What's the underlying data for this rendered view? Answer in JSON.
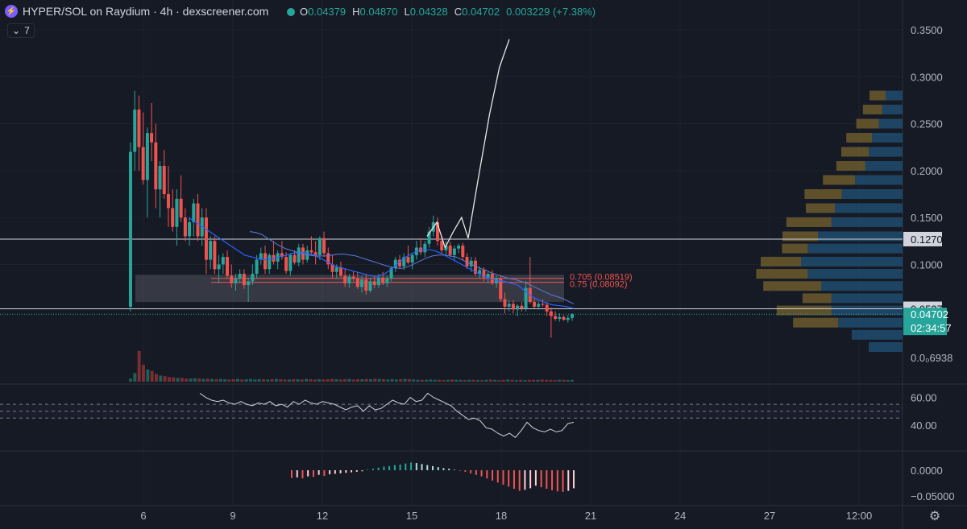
{
  "header": {
    "title": "HYPER/SOL on Raydium · 4h · dexscreener.com",
    "indicator_button": "7",
    "ohlc": [
      {
        "k": "O",
        "v": "0.04379"
      },
      {
        "k": "H",
        "v": "0.04870"
      },
      {
        "k": "L",
        "v": "0.04328"
      },
      {
        "k": "C",
        "v": "0.04702"
      },
      {
        "k": "",
        "v": "0.003229 (+7.38%)"
      }
    ]
  },
  "colors": {
    "background": "#161a25",
    "up": "#26a69a",
    "down": "#ef5350",
    "ma": "#2962ff",
    "text": "#b2b5be",
    "hline": "#d1d4dc",
    "rsi": "#d1d4dc",
    "fib": "#ef5350",
    "vp_up": "#1e4d6e",
    "vp_down": "#6b5a2d"
  },
  "chart_data": [
    {
      "type": "candlestick",
      "title": "HYPER/SOL on Raydium · 4h",
      "x_tick_labels": [
        "6",
        "9",
        "12",
        "15",
        "18",
        "21",
        "24",
        "27",
        "12:00"
      ],
      "y_tick_labels": [
        "0.3500",
        "0.3000",
        "0.2500",
        "0.2000",
        "0.1500",
        "0.1000",
        "0.0₀6938"
      ],
      "y_ticks": [
        0.35,
        0.3,
        0.25,
        0.2,
        0.15,
        0.1
      ],
      "price_labels": [
        {
          "text": "0.1270",
          "value": 0.127,
          "style": "white"
        },
        {
          "text": "0.05273",
          "value": 0.05273,
          "style": "white"
        },
        {
          "text": "0.04702",
          "value": 0.04702,
          "style": "current"
        },
        {
          "text": "02:34:57",
          "value": 0.04702,
          "style": "countdown"
        }
      ],
      "fib_labels": [
        {
          "text": "0.705 (0.08519)",
          "value": 0.08519
        },
        {
          "text": "0.75 (0.08092)",
          "value": 0.08092
        }
      ],
      "zone": [
        0.06,
        0.089
      ],
      "candles": [
        [
          0.055,
          0.23,
          0.05,
          0.22
        ],
        [
          0.22,
          0.285,
          0.2,
          0.265
        ],
        [
          0.265,
          0.28,
          0.2,
          0.225
        ],
        [
          0.225,
          0.262,
          0.185,
          0.19
        ],
        [
          0.19,
          0.246,
          0.15,
          0.24
        ],
        [
          0.24,
          0.272,
          0.21,
          0.23
        ],
        [
          0.23,
          0.25,
          0.16,
          0.18
        ],
        [
          0.18,
          0.21,
          0.15,
          0.205
        ],
        [
          0.205,
          0.222,
          0.17,
          0.175
        ],
        [
          0.175,
          0.205,
          0.14,
          0.16
        ],
        [
          0.16,
          0.18,
          0.135,
          0.14
        ],
        [
          0.14,
          0.18,
          0.12,
          0.17
        ],
        [
          0.17,
          0.195,
          0.145,
          0.15
        ],
        [
          0.15,
          0.16,
          0.125,
          0.13
        ],
        [
          0.13,
          0.15,
          0.12,
          0.145
        ],
        [
          0.145,
          0.17,
          0.13,
          0.165
        ],
        [
          0.165,
          0.175,
          0.125,
          0.13
        ],
        [
          0.13,
          0.16,
          0.12,
          0.15
        ],
        [
          0.15,
          0.16,
          0.09,
          0.105
        ],
        [
          0.105,
          0.13,
          0.095,
          0.125
        ],
        [
          0.125,
          0.13,
          0.09,
          0.095
        ],
        [
          0.095,
          0.11,
          0.08,
          0.1
        ],
        [
          0.1,
          0.112,
          0.09,
          0.108
        ],
        [
          0.108,
          0.115,
          0.085,
          0.088
        ],
        [
          0.088,
          0.1,
          0.075,
          0.08
        ],
        [
          0.08,
          0.09,
          0.072,
          0.085
        ],
        [
          0.085,
          0.095,
          0.08,
          0.09
        ],
        [
          0.09,
          0.095,
          0.074,
          0.078
        ],
        [
          0.078,
          0.086,
          0.06,
          0.082
        ],
        [
          0.082,
          0.1,
          0.078,
          0.09
        ],
        [
          0.09,
          0.11,
          0.085,
          0.105
        ],
        [
          0.105,
          0.118,
          0.1,
          0.112
        ],
        [
          0.112,
          0.12,
          0.09,
          0.095
        ],
        [
          0.095,
          0.112,
          0.09,
          0.11
        ],
        [
          0.11,
          0.125,
          0.1,
          0.103
        ],
        [
          0.103,
          0.115,
          0.095,
          0.112
        ],
        [
          0.112,
          0.125,
          0.105,
          0.108
        ],
        [
          0.108,
          0.113,
          0.09,
          0.093
        ],
        [
          0.093,
          0.112,
          0.088,
          0.11
        ],
        [
          0.11,
          0.115,
          0.1,
          0.102
        ],
        [
          0.102,
          0.122,
          0.098,
          0.118
        ],
        [
          0.118,
          0.122,
          0.1,
          0.105
        ],
        [
          0.105,
          0.12,
          0.102,
          0.115
        ],
        [
          0.115,
          0.13,
          0.11,
          0.113
        ],
        [
          0.113,
          0.125,
          0.1,
          0.11
        ],
        [
          0.11,
          0.13,
          0.105,
          0.128
        ],
        [
          0.128,
          0.135,
          0.108,
          0.112
        ],
        [
          0.112,
          0.118,
          0.095,
          0.1
        ],
        [
          0.1,
          0.11,
          0.085,
          0.092
        ],
        [
          0.092,
          0.1,
          0.085,
          0.097
        ],
        [
          0.097,
          0.103,
          0.086,
          0.088
        ],
        [
          0.088,
          0.095,
          0.076,
          0.08
        ],
        [
          0.08,
          0.09,
          0.075,
          0.087
        ],
        [
          0.087,
          0.093,
          0.082,
          0.085
        ],
        [
          0.085,
          0.092,
          0.074,
          0.076
        ],
        [
          0.076,
          0.088,
          0.07,
          0.084
        ],
        [
          0.084,
          0.09,
          0.068,
          0.072
        ],
        [
          0.072,
          0.085,
          0.07,
          0.082
        ],
        [
          0.082,
          0.088,
          0.075,
          0.078
        ],
        [
          0.078,
          0.09,
          0.075,
          0.086
        ],
        [
          0.086,
          0.092,
          0.078,
          0.08
        ],
        [
          0.08,
          0.088,
          0.076,
          0.085
        ],
        [
          0.085,
          0.098,
          0.082,
          0.096
        ],
        [
          0.096,
          0.108,
          0.092,
          0.105
        ],
        [
          0.105,
          0.11,
          0.095,
          0.098
        ],
        [
          0.098,
          0.112,
          0.094,
          0.108
        ],
        [
          0.108,
          0.12,
          0.1,
          0.102
        ],
        [
          0.102,
          0.112,
          0.095,
          0.11
        ],
        [
          0.11,
          0.125,
          0.105,
          0.118
        ],
        [
          0.118,
          0.128,
          0.11,
          0.113
        ],
        [
          0.113,
          0.125,
          0.108,
          0.122
        ],
        [
          0.122,
          0.14,
          0.118,
          0.135
        ],
        [
          0.135,
          0.152,
          0.13,
          0.145
        ],
        [
          0.145,
          0.15,
          0.12,
          0.125
        ],
        [
          0.125,
          0.13,
          0.112,
          0.115
        ],
        [
          0.115,
          0.125,
          0.11,
          0.12
        ],
        [
          0.12,
          0.124,
          0.108,
          0.11
        ],
        [
          0.11,
          0.12,
          0.105,
          0.117
        ],
        [
          0.117,
          0.122,
          0.112,
          0.12
        ],
        [
          0.12,
          0.123,
          0.105,
          0.108
        ],
        [
          0.108,
          0.112,
          0.095,
          0.098
        ],
        [
          0.098,
          0.108,
          0.092,
          0.104
        ],
        [
          0.104,
          0.108,
          0.088,
          0.09
        ],
        [
          0.09,
          0.098,
          0.085,
          0.094
        ],
        [
          0.094,
          0.097,
          0.082,
          0.086
        ],
        [
          0.086,
          0.092,
          0.08,
          0.09
        ],
        [
          0.09,
          0.094,
          0.078,
          0.08
        ],
        [
          0.08,
          0.088,
          0.075,
          0.085
        ],
        [
          0.085,
          0.088,
          0.06,
          0.063
        ],
        [
          0.063,
          0.07,
          0.048,
          0.055
        ],
        [
          0.055,
          0.062,
          0.05,
          0.058
        ],
        [
          0.058,
          0.062,
          0.048,
          0.052
        ],
        [
          0.052,
          0.058,
          0.045,
          0.056
        ],
        [
          0.056,
          0.06,
          0.05,
          0.053
        ],
        [
          0.053,
          0.082,
          0.05,
          0.075
        ],
        [
          0.075,
          0.108,
          0.058,
          0.06
        ],
        [
          0.06,
          0.064,
          0.053,
          0.055
        ],
        [
          0.055,
          0.06,
          0.052,
          0.058
        ],
        [
          0.058,
          0.063,
          0.055,
          0.057
        ],
        [
          0.057,
          0.06,
          0.045,
          0.05
        ],
        [
          0.05,
          0.054,
          0.022,
          0.045
        ],
        [
          0.045,
          0.05,
          0.04,
          0.042
        ],
        [
          0.042,
          0.048,
          0.039,
          0.044
        ],
        [
          0.044,
          0.046,
          0.04,
          0.041
        ],
        [
          0.041,
          0.046,
          0.038,
          0.043
        ],
        [
          0.043,
          0.048,
          0.04,
          0.047
        ]
      ],
      "ma_fast": [
        0.15,
        0.145,
        0.14,
        0.135,
        0.13,
        0.125,
        0.12,
        0.115,
        0.11,
        0.108,
        0.106,
        0.105,
        0.106,
        0.108,
        0.11,
        0.112,
        0.113,
        0.112,
        0.11,
        0.106,
        0.102,
        0.098,
        0.096,
        0.094,
        0.092,
        0.09,
        0.088,
        0.087,
        0.09,
        0.095,
        0.102,
        0.108,
        0.112,
        0.115,
        0.116,
        0.115,
        0.112,
        0.108,
        0.104,
        0.1,
        0.096,
        0.092,
        0.088,
        0.085,
        0.083,
        0.082,
        0.08,
        0.078,
        0.072,
        0.066,
        0.062,
        0.059,
        0.057,
        0.056,
        0.055,
        0.053
      ],
      "ma_slow": [
        0.135,
        0.134,
        0.132,
        0.128,
        0.124,
        0.12,
        0.117,
        0.115,
        0.113,
        0.111,
        0.11,
        0.109,
        0.109,
        0.109,
        0.11,
        0.111,
        0.111,
        0.11,
        0.109,
        0.107,
        0.105,
        0.103,
        0.101,
        0.099,
        0.097,
        0.096,
        0.096,
        0.098,
        0.101,
        0.104,
        0.107,
        0.109,
        0.11,
        0.11,
        0.109,
        0.108,
        0.105,
        0.102,
        0.099,
        0.096,
        0.094,
        0.091,
        0.089,
        0.087,
        0.085,
        0.084,
        0.082,
        0.08,
        0.077,
        0.074,
        0.071,
        0.068,
        0.066,
        0.064,
        0.061,
        0.058
      ],
      "projection_path": [
        [
          0.13,
          0
        ],
        [
          0.145,
          0.12
        ],
        [
          0.118,
          0.22
        ],
        [
          0.135,
          0.32
        ],
        [
          0.15,
          0.42
        ],
        [
          0.128,
          0.5
        ],
        [
          0.19,
          0.62
        ],
        [
          0.26,
          0.76
        ],
        [
          0.31,
          0.88
        ],
        [
          0.34,
          1.0
        ]
      ],
      "rsi": {
        "bands": [
          55,
          50,
          45
        ],
        "ylim": [
          30,
          65
        ],
        "y_tick_labels": [
          "60.00",
          "40.00"
        ],
        "values": [
          63,
          60,
          58,
          57,
          58,
          56,
          55,
          57,
          55,
          54,
          56,
          55,
          57,
          54,
          55,
          53,
          57,
          55,
          58,
          56,
          55,
          57,
          56,
          55,
          53,
          51,
          53,
          54,
          50,
          54,
          51,
          52,
          55,
          58,
          56,
          55,
          60,
          57,
          58,
          63,
          60,
          58,
          56,
          54,
          50,
          47,
          44,
          45,
          43,
          38,
          37,
          34,
          32,
          34,
          31,
          36,
          42,
          38,
          36,
          35,
          37,
          35,
          36,
          41,
          42
        ]
      },
      "macd": {
        "ylim": [
          -0.06,
          0.02
        ],
        "y_tick_labels": [
          "0.0000",
          "−0.05000"
        ],
        "values": [
          -0.015,
          -0.014,
          -0.016,
          -0.012,
          -0.013,
          -0.009,
          -0.011,
          -0.008,
          -0.007,
          -0.006,
          -0.005,
          -0.004,
          -0.003,
          -0.002,
          0.001,
          0.003,
          0.005,
          0.007,
          0.008,
          0.01,
          0.011,
          0.013,
          0.015,
          0.014,
          0.012,
          0.01,
          0.008,
          0.006,
          0.004,
          0.003,
          0.001,
          -0.001,
          -0.003,
          -0.006,
          -0.009,
          -0.012,
          -0.016,
          -0.02,
          -0.024,
          -0.028,
          -0.032,
          -0.036,
          -0.04,
          -0.038,
          -0.035,
          -0.03,
          -0.033,
          -0.036,
          -0.039,
          -0.041,
          -0.042,
          -0.04,
          -0.035
        ]
      },
      "volume": [
        0.1,
        0.28,
        1.0,
        0.55,
        0.4,
        0.35,
        0.25,
        0.2,
        0.18,
        0.15,
        0.14,
        0.12,
        0.12,
        0.1,
        0.1,
        0.11,
        0.1,
        0.09,
        0.1,
        0.09,
        0.08,
        0.09,
        0.08,
        0.07,
        0.08,
        0.09,
        0.07,
        0.08,
        0.09,
        0.07,
        0.08,
        0.08,
        0.07,
        0.08,
        0.09,
        0.08,
        0.07,
        0.07,
        0.08,
        0.08,
        0.07,
        0.09,
        0.08,
        0.07,
        0.08,
        0.07,
        0.08,
        0.09,
        0.08,
        0.07,
        0.08,
        0.09,
        0.07,
        0.08,
        0.08,
        0.09,
        0.08,
        0.1,
        0.09,
        0.08,
        0.07,
        0.08,
        0.07,
        0.08,
        0.09,
        0.08,
        0.07,
        0.06,
        0.06,
        0.06,
        0.07,
        0.06,
        0.06,
        0.05,
        0.06,
        0.07,
        0.06,
        0.06,
        0.05,
        0.06,
        0.06,
        0.05,
        0.05,
        0.06,
        0.07,
        0.06,
        0.05,
        0.06,
        0.07,
        0.06,
        0.05,
        0.06,
        0.05,
        0.06,
        0.06,
        0.06,
        0.07,
        0.06,
        0.06,
        0.05,
        0.06,
        0.06,
        0.05,
        0.06
      ],
      "volume_profile": [
        {
          "value": 0.28,
          "down": 0.1,
          "up": 0.1
        },
        {
          "value": 0.265,
          "down": 0.12,
          "up": 0.12
        },
        {
          "value": 0.25,
          "down": 0.14,
          "up": 0.14
        },
        {
          "value": 0.235,
          "down": 0.16,
          "up": 0.18
        },
        {
          "value": 0.22,
          "down": 0.17,
          "up": 0.2
        },
        {
          "value": 0.205,
          "down": 0.18,
          "up": 0.22
        },
        {
          "value": 0.19,
          "down": 0.2,
          "up": 0.28
        },
        {
          "value": 0.175,
          "down": 0.23,
          "up": 0.36
        },
        {
          "value": 0.16,
          "down": 0.18,
          "up": 0.4
        },
        {
          "value": 0.145,
          "down": 0.28,
          "up": 0.42
        },
        {
          "value": 0.13,
          "down": 0.22,
          "up": 0.5
        },
        {
          "value": 0.117,
          "down": 0.16,
          "up": 0.56
        },
        {
          "value": 0.103,
          "down": 0.25,
          "up": 0.6
        },
        {
          "value": 0.09,
          "down": 0.32,
          "up": 0.56
        },
        {
          "value": 0.077,
          "down": 0.36,
          "up": 0.48
        },
        {
          "value": 0.064,
          "down": 0.18,
          "up": 0.42
        },
        {
          "value": 0.051,
          "down": 0.34,
          "up": 0.42
        },
        {
          "value": 0.038,
          "down": 0.28,
          "up": 0.38
        },
        {
          "value": 0.025,
          "down": 0.0,
          "up": 0.3
        },
        {
          "value": 0.012,
          "down": 0.0,
          "up": 0.2
        }
      ]
    }
  ]
}
